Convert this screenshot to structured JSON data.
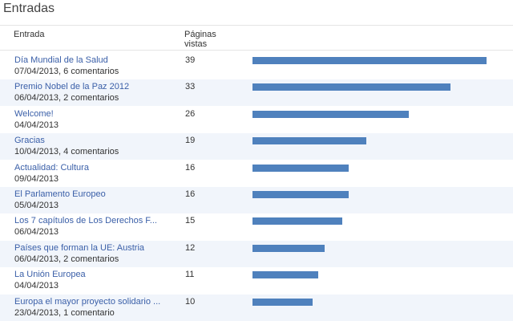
{
  "header": {
    "title": "Entradas"
  },
  "table": {
    "columns": [
      "Entrada",
      "Páginas vistas"
    ],
    "rows": [
      {
        "title": "Día Mundial de la Salud",
        "meta": "07/04/2013, 6 comentarios",
        "views": 39
      },
      {
        "title": "Premio Nobel de la Paz 2012",
        "meta": "06/04/2013, 2 comentarios",
        "views": 33
      },
      {
        "title": "Welcome!",
        "meta": "04/04/2013",
        "views": 26
      },
      {
        "title": "Gracias",
        "meta": "10/04/2013, 4 comentarios",
        "views": 19
      },
      {
        "title": "Actualidad: Cultura",
        "meta": "09/04/2013",
        "views": 16
      },
      {
        "title": "El Parlamento Europeo",
        "meta": "05/04/2013",
        "views": 16
      },
      {
        "title": "Los 7 capítulos de Los Derechos F...",
        "meta": "06/04/2013",
        "views": 15
      },
      {
        "title": "Países que forman la UE: Austria",
        "meta": "06/04/2013, 2 comentarios",
        "views": 12
      },
      {
        "title": "La Unión Europea",
        "meta": "04/04/2013",
        "views": 11
      },
      {
        "title": "Europa el mayor proyecto solidario ...",
        "meta": "23/04/2013, 1 comentario",
        "views": 10
      }
    ]
  }
}
